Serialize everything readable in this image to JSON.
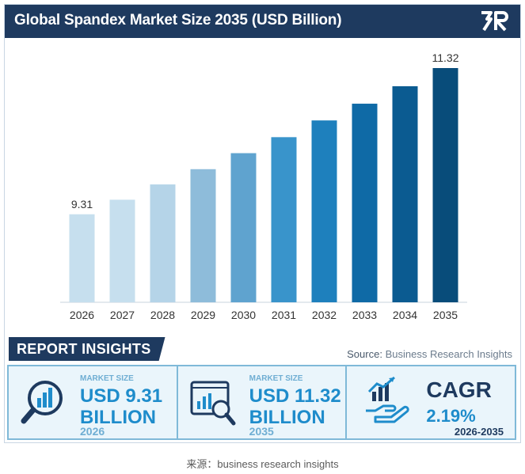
{
  "header": {
    "title": "Global Spandex Market Size 2035 (USD Billion)",
    "logo_icon": "br-logo-icon"
  },
  "chart_data": {
    "type": "bar",
    "title": "Global Spandex Market Size 2035 (USD Billion)",
    "categories": [
      "2026",
      "2027",
      "2028",
      "2029",
      "2030",
      "2031",
      "2032",
      "2033",
      "2034",
      "2035"
    ],
    "values": [
      9.31,
      9.51,
      9.72,
      9.93,
      10.15,
      10.37,
      10.6,
      10.83,
      11.07,
      11.32
    ],
    "data_labels": [
      {
        "category": "2026",
        "text": "9.31"
      },
      {
        "category": "2035",
        "text": "11.32"
      }
    ],
    "ylim": [
      8.1,
      11.32
    ],
    "xlabel": "",
    "ylabel": "",
    "grid": false,
    "colors": [
      "#c6dfee",
      "#c6dfee",
      "#b5d4e8",
      "#8ebcda",
      "#5fa3cf",
      "#3994cb",
      "#1e80bd",
      "#0f6aa6",
      "#0b5b91",
      "#084c7a"
    ]
  },
  "insights": {
    "badge": "REPORT INSIGHTS",
    "source_prefix": "Source:",
    "source_name": "Business Research Insights",
    "panel1": {
      "label": "MARKET SIZE",
      "line1": "USD 9.31",
      "line2": "BILLION",
      "year": "2026",
      "icon": "chart-magnifier-icon"
    },
    "panel2": {
      "label": "MARKET SIZE",
      "line1": "USD 11.32",
      "line2": "BILLION",
      "year": "2035",
      "icon": "analytics-screen-icon"
    },
    "panel3": {
      "title": "CAGR",
      "value": "2.19%",
      "years": "2026-2035",
      "icon": "growth-hand-icon"
    }
  },
  "caption": "来源：business research insights",
  "colors": {
    "header_bg": "#1e3a5f",
    "accent": "#1e8ccb",
    "panel_bg": "#eaf5fb"
  }
}
